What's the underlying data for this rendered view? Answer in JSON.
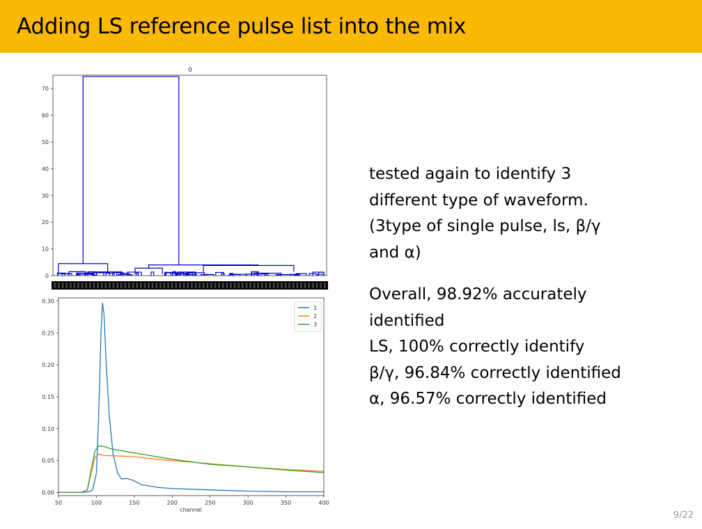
{
  "slide": {
    "title": "Adding LS reference pulse list into the mix",
    "page_number": "9/22"
  },
  "text": {
    "para1": [
      "tested again to identify 3",
      "different type of waveform.",
      "(3type of single pulse, ls, β/γ",
      "and α)"
    ],
    "para2": [
      "Overall, 98.92% accurately",
      "identified",
      "LS, 100% correctly identify",
      "β/γ, 96.84% correctly identified",
      "α, 96.57% correctly identified"
    ]
  },
  "colors": {
    "header": "#fcb903",
    "dendro": "#0000cc",
    "s1": "#1f77b4",
    "s2": "#ff7f0e",
    "s3": "#2ca02c"
  },
  "chart_data": [
    {
      "type": "dendrogram",
      "title": "0",
      "ylim": [
        0,
        75
      ],
      "yticks": [
        0,
        10,
        20,
        30,
        40,
        50,
        60,
        70
      ],
      "ytick_labels": [
        "0",
        "10",
        "20",
        "30",
        "40",
        "50",
        "60",
        "70"
      ],
      "links": [
        {
          "x1": 0.11,
          "x2": 0.46,
          "h": 74.5,
          "l1": 4.5,
          "l2": 4.0
        },
        {
          "x1": 0.02,
          "x2": 0.2,
          "h": 4.5,
          "l1": 1.0,
          "l2": 1.4
        },
        {
          "x1": 0.35,
          "x2": 0.75,
          "h": 4.0,
          "l1": 2.8,
          "l2": 3.8
        },
        {
          "x1": 0.15,
          "x2": 0.25,
          "h": 1.4,
          "l1": 0.5,
          "l2": 0.6
        },
        {
          "x1": 0.3,
          "x2": 0.4,
          "h": 2.8,
          "l1": 0.4,
          "l2": 0.5
        },
        {
          "x1": 0.55,
          "x2": 0.88,
          "h": 3.8,
          "l1": 1.2,
          "l2": 1.5
        }
      ],
      "leaf_label_band": true
    },
    {
      "type": "line",
      "xlabel": "channel",
      "xlim": [
        50,
        400
      ],
      "ylim": [
        -0.005,
        0.305
      ],
      "xticks": [
        50,
        100,
        150,
        200,
        250,
        300,
        350,
        400
      ],
      "xtick_labels": [
        "50",
        "100",
        "150",
        "200",
        "250",
        "300",
        "350",
        "400"
      ],
      "yticks": [
        0.0,
        0.05,
        0.1,
        0.15,
        0.2,
        0.25,
        0.3
      ],
      "ytick_labels": [
        "0.00",
        "0.05",
        "0.10",
        "0.15",
        "0.20",
        "0.25",
        "0.30"
      ],
      "legend": "top-right",
      "series": [
        {
          "name": "1",
          "color": "#1f77b4",
          "points": [
            [
              50,
              0.0
            ],
            [
              80,
              0.0
            ],
            [
              90,
              0.001
            ],
            [
              95,
              0.004
            ],
            [
              100,
              0.03
            ],
            [
              103,
              0.12
            ],
            [
              106,
              0.25
            ],
            [
              108,
              0.297
            ],
            [
              110,
              0.28
            ],
            [
              113,
              0.2
            ],
            [
              117,
              0.12
            ],
            [
              122,
              0.06
            ],
            [
              128,
              0.03
            ],
            [
              133,
              0.021
            ],
            [
              140,
              0.022
            ],
            [
              148,
              0.019
            ],
            [
              160,
              0.012
            ],
            [
              180,
              0.008
            ],
            [
              200,
              0.006
            ],
            [
              250,
              0.004
            ],
            [
              300,
              0.002
            ],
            [
              350,
              0.001
            ],
            [
              400,
              0.001
            ]
          ]
        },
        {
          "name": "2",
          "color": "#ff7f0e",
          "points": [
            [
              50,
              0.0
            ],
            [
              80,
              0.0
            ],
            [
              88,
              0.004
            ],
            [
              93,
              0.03
            ],
            [
              98,
              0.055
            ],
            [
              103,
              0.06
            ],
            [
              110,
              0.058
            ],
            [
              130,
              0.057
            ],
            [
              150,
              0.056
            ],
            [
              180,
              0.052
            ],
            [
              200,
              0.05
            ],
            [
              250,
              0.045
            ],
            [
              300,
              0.04
            ],
            [
              350,
              0.036
            ],
            [
              400,
              0.033
            ]
          ]
        },
        {
          "name": "3",
          "color": "#2ca02c",
          "points": [
            [
              50,
              0.0
            ],
            [
              80,
              0.0
            ],
            [
              88,
              0.004
            ],
            [
              93,
              0.035
            ],
            [
              98,
              0.065
            ],
            [
              103,
              0.073
            ],
            [
              110,
              0.072
            ],
            [
              120,
              0.068
            ],
            [
              140,
              0.064
            ],
            [
              160,
              0.06
            ],
            [
              200,
              0.052
            ],
            [
              250,
              0.044
            ],
            [
              300,
              0.04
            ],
            [
              350,
              0.035
            ],
            [
              400,
              0.031
            ]
          ]
        }
      ]
    }
  ]
}
